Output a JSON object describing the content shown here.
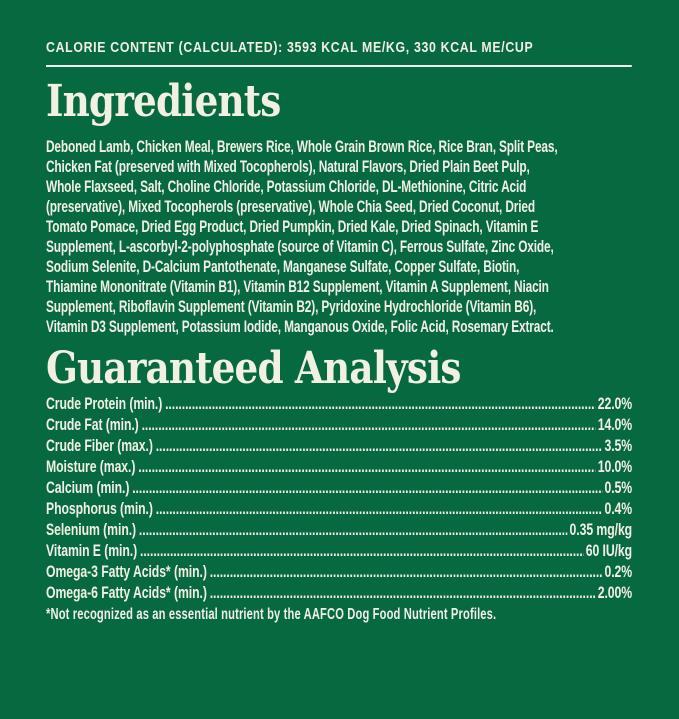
{
  "colors": {
    "background": "#06693F",
    "text": "#F2EFE3"
  },
  "header": {
    "calorie_line": "CALORIE CONTENT (CALCULATED): 3593 KCAL ME/KG, 330 KCAL ME/CUP"
  },
  "ingredients": {
    "title": "Ingredients",
    "lines": [
      "Deboned Lamb, Chicken Meal, Brewers Rice, Whole Grain Brown Rice, Rice Bran, Split Peas,",
      "Chicken Fat (preserved with Mixed Tocopherols), Natural Flavors, Dried Plain Beet Pulp,",
      "Whole Flaxseed, Salt, Choline Chloride, Potassium Chloride, DL-Methionine, Citric Acid",
      "(preservative), Mixed Tocopherols (preservative), Whole Chia Seed, Dried Coconut, Dried",
      "Tomato Pomace, Dried Egg Product, Dried Pumpkin, Dried Kale, Dried Spinach, Vitamin E",
      "Supplement, L-ascorbyl-2-polyphosphate (source of Vitamin C), Ferrous Sulfate, Zinc Oxide,",
      "Sodium Selenite, D-Calcium Pantothenate, Manganese Sulfate, Copper Sulfate, Biotin,",
      "Thiamine Mononitrate (Vitamin B1), Vitamin B12 Supplement, Vitamin A Supplement, Niacin",
      "Supplement, Riboflavin Supplement (Vitamin B2), Pyridoxine Hydrochloride (Vitamin B6),",
      "Vitamin D3 Supplement, Potassium Iodide, Manganous Oxide, Folic Acid, Rosemary Extract."
    ]
  },
  "guaranteed_analysis": {
    "title": "Guaranteed Analysis",
    "rows": [
      {
        "label": "Crude Protein (min.)",
        "value": "22.0%"
      },
      {
        "label": "Crude Fat (min.)",
        "value": "14.0%"
      },
      {
        "label": "Crude Fiber (max.)",
        "value": "3.5%"
      },
      {
        "label": "Moisture (max.)",
        "value": "10.0%"
      },
      {
        "label": "Calcium (min.)",
        "value": "0.5%"
      },
      {
        "label": "Phosphorus (min.)",
        "value": "0.4%"
      },
      {
        "label": "Selenium (min.)",
        "value": "0.35 mg/kg"
      },
      {
        "label": "Vitamin E (min.)",
        "value": "60 IU/kg"
      },
      {
        "label": "Omega-3 Fatty Acids* (min.)",
        "value": "0.2%"
      },
      {
        "label": "Omega-6 Fatty Acids* (min.)",
        "value": "2.00%"
      }
    ],
    "footnote": "*Not recognized as an essential nutrient by the AAFCO Dog Food Nutrient Profiles."
  }
}
